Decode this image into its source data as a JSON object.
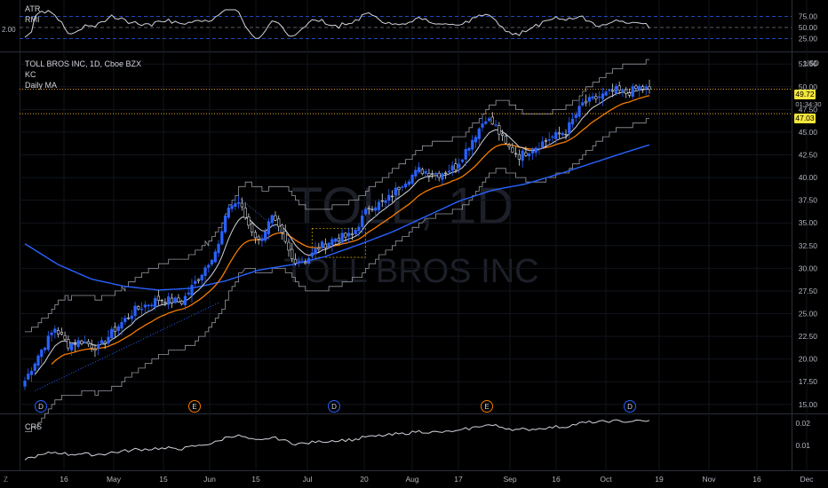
{
  "atr_pane": {
    "labels": [
      "ATR",
      "RMI"
    ],
    "left_value": "2.00",
    "ticks": [
      "75.00",
      "50.00",
      "25.00"
    ]
  },
  "main_pane": {
    "title": "TOLL BROS INC, 1D, Cboe BZX",
    "indicators": [
      "KC",
      "Daily MA"
    ],
    "currency": "USD",
    "watermark_symbol": "TOLL, 1D",
    "watermark_name": "TOLL BROS INC",
    "price_ticks": [
      "52.50",
      "50.00",
      "47.50",
      "45.00",
      "42.50",
      "40.00",
      "37.50",
      "35.00",
      "32.50",
      "30.00",
      "27.50",
      "25.00",
      "22.50",
      "20.00",
      "17.50",
      "15.00"
    ],
    "price_tag_upper": "49.72",
    "countdown": "01:34:30",
    "price_tag_lower": "47.03",
    "event_markers": [
      "D",
      "E",
      "D",
      "E",
      "D"
    ]
  },
  "crs_pane": {
    "label": "CRS",
    "ticks": [
      "0.02",
      "0.01"
    ]
  },
  "time_axis": {
    "labels": [
      "16",
      "May",
      "15",
      "Jun",
      "15",
      "Jul",
      "20",
      "Aug",
      "17",
      "Sep",
      "16",
      "Oct",
      "19",
      "Nov",
      "16",
      "Dec"
    ]
  },
  "chart_data": {
    "type": "candlestick",
    "symbol": "TOLL BROS INC",
    "interval": "1D",
    "exchange": "Cboe BZX",
    "x_labels": [
      "16",
      "May",
      "15",
      "Jun",
      "15",
      "Jul",
      "20",
      "Aug",
      "17",
      "Sep",
      "16",
      "Oct",
      "19",
      "Nov",
      "16",
      "Dec"
    ],
    "y_range": [
      14,
      53.5
    ],
    "last_close": 49.72,
    "horizontal_level": 47.03,
    "close_keypoints": [
      [
        0,
        17.6
      ],
      [
        4,
        20.4
      ],
      [
        9,
        23.4
      ],
      [
        13,
        21.6
      ],
      [
        17,
        22.0
      ],
      [
        22,
        21.2
      ],
      [
        27,
        23.3
      ],
      [
        33,
        25.4
      ],
      [
        40,
        26.6
      ],
      [
        47,
        26.3
      ],
      [
        53,
        29.5
      ],
      [
        58,
        32.5
      ],
      [
        61,
        36.8
      ],
      [
        64,
        37.3
      ],
      [
        67,
        34.8
      ],
      [
        70,
        33.0
      ],
      [
        74,
        35.5
      ],
      [
        77,
        33.6
      ],
      [
        80,
        31.0
      ],
      [
        84,
        30.8
      ],
      [
        88,
        32.3
      ],
      [
        93,
        33.3
      ],
      [
        98,
        33.6
      ],
      [
        103,
        36.8
      ],
      [
        108,
        37.3
      ],
      [
        113,
        39.4
      ],
      [
        118,
        40.8
      ],
      [
        124,
        40.4
      ],
      [
        129,
        41.2
      ],
      [
        134,
        44.2
      ],
      [
        138,
        46.6
      ],
      [
        141,
        45.6
      ],
      [
        144,
        43.6
      ],
      [
        148,
        42.4
      ],
      [
        152,
        43.2
      ],
      [
        157,
        44.3
      ],
      [
        162,
        45.1
      ],
      [
        167,
        48.1
      ],
      [
        172,
        48.9
      ],
      [
        177,
        49.6
      ],
      [
        180,
        49.3
      ],
      [
        184,
        49.9
      ],
      [
        187,
        49.72
      ]
    ],
    "ma_long_keypoints": [
      [
        0,
        32.7
      ],
      [
        10,
        30.4
      ],
      [
        20,
        28.8
      ],
      [
        30,
        28.0
      ],
      [
        40,
        27.6
      ],
      [
        50,
        27.8
      ],
      [
        60,
        28.6
      ],
      [
        70,
        29.8
      ],
      [
        80,
        30.4
      ],
      [
        90,
        31.3
      ],
      [
        100,
        32.6
      ],
      [
        110,
        34.0
      ],
      [
        120,
        35.7
      ],
      [
        130,
        37.4
      ],
      [
        140,
        38.6
      ],
      [
        150,
        39.3
      ],
      [
        160,
        40.4
      ],
      [
        170,
        41.6
      ],
      [
        180,
        42.8
      ],
      [
        187,
        43.6
      ]
    ],
    "event_marker_dates": [
      "D",
      "E",
      "D",
      "E",
      "D"
    ],
    "atr_ticks": [
      75,
      50,
      25
    ],
    "crs_ticks": [
      0.02,
      0.01
    ]
  }
}
